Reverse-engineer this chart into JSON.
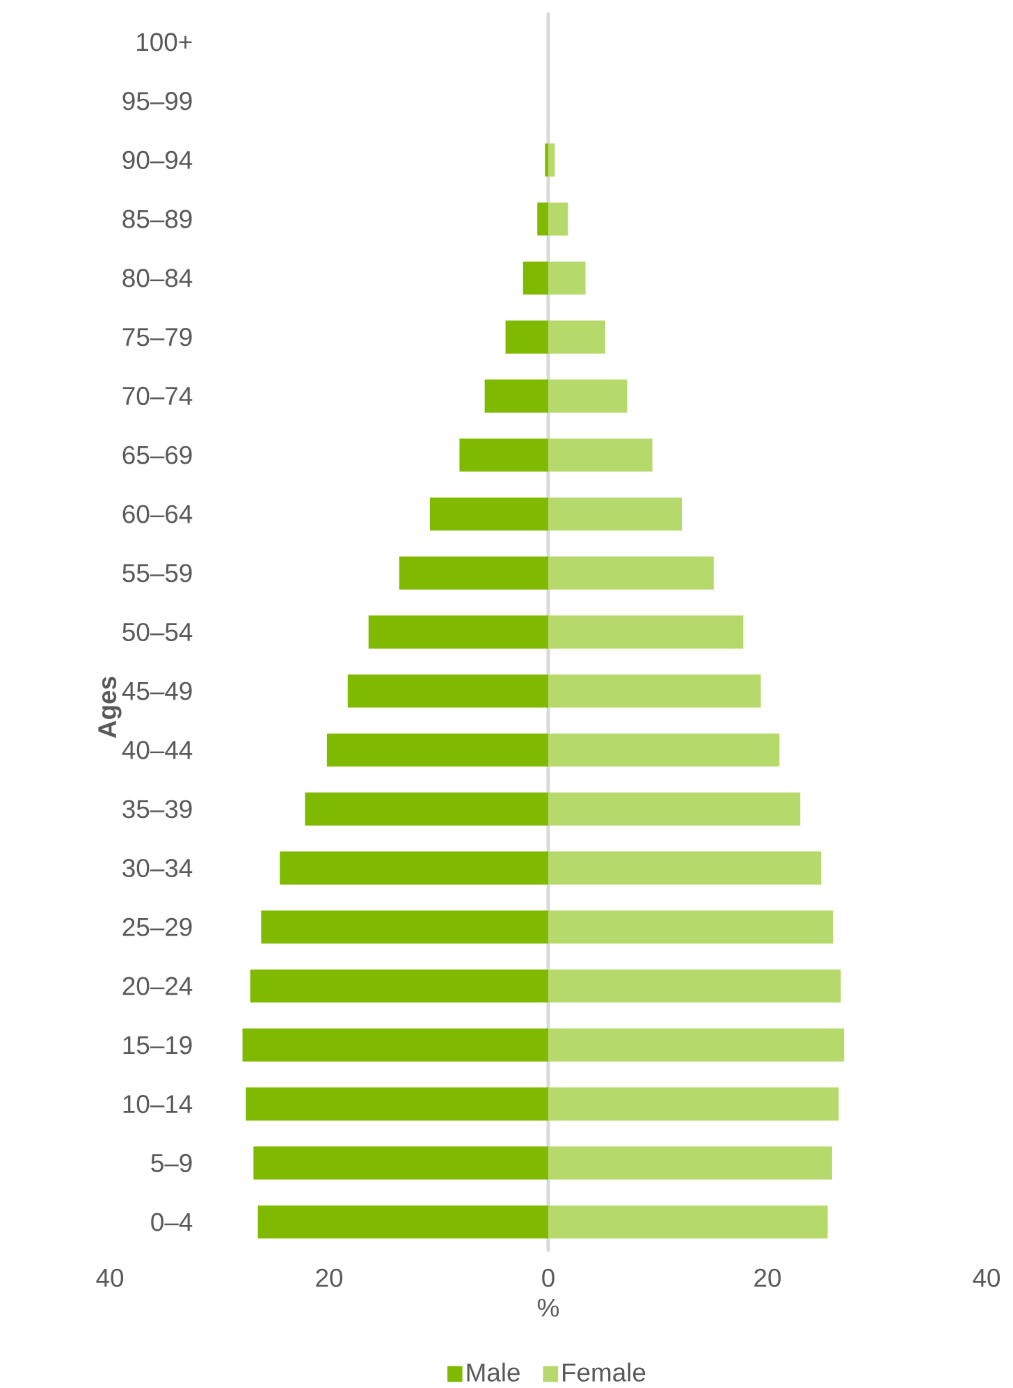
{
  "chart_data": {
    "type": "bar",
    "orientation": "horizontal",
    "xlabel": "%",
    "ylabel": "Ages",
    "categories": [
      "100+",
      "95–99",
      "90–94",
      "85–89",
      "80–84",
      "75–79",
      "70–74",
      "65–69",
      "60–64",
      "55–59",
      "50–54",
      "45–49",
      "40–44",
      "35–39",
      "30–34",
      "25–29",
      "20–24",
      "15–19",
      "10–14",
      "5–9",
      "0–4"
    ],
    "series": [
      {
        "name": "Male",
        "color": "#7fba00",
        "values": [
          0,
          0,
          -0.3,
          -1.0,
          -2.3,
          -3.9,
          -5.8,
          -8.1,
          -10.8,
          -13.6,
          -16.4,
          -18.3,
          -20.2,
          -22.2,
          -24.5,
          -26.2,
          -27.2,
          -27.9,
          -27.6,
          -26.9,
          -26.5
        ]
      },
      {
        "name": "Female",
        "color": "#b5d96b",
        "values": [
          0,
          0,
          0.6,
          1.8,
          3.4,
          5.2,
          7.2,
          9.5,
          12.2,
          15.1,
          17.8,
          19.4,
          21.1,
          23.0,
          24.9,
          26.0,
          26.7,
          27.0,
          26.5,
          25.9,
          25.5
        ]
      }
    ],
    "xlim": [
      -40,
      40
    ],
    "xticks": [
      {
        "value": -40,
        "label": "40"
      },
      {
        "value": -20,
        "label": "20"
      },
      0,
      20,
      40
    ],
    "stacked": true,
    "ref_lines": [
      {
        "axis": "x",
        "value": 0,
        "color": "#d9d9d9"
      }
    ],
    "legend": "bottom"
  }
}
